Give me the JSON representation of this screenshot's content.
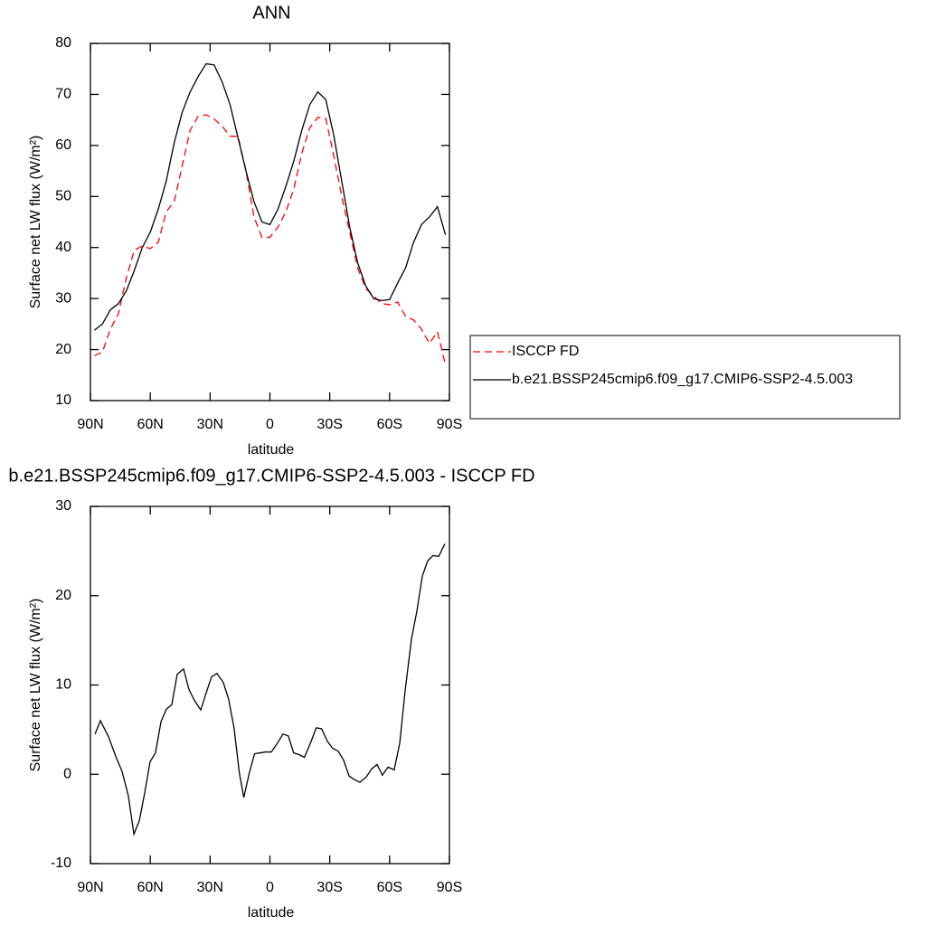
{
  "chart_data": [
    {
      "type": "line",
      "title": "ANN",
      "xlabel": "latitude",
      "ylabel": "Surface net LW flux (W/m²)",
      "x": [
        88,
        84,
        80,
        76,
        72,
        68,
        64,
        60,
        56,
        52,
        48,
        44,
        40,
        36,
        32,
        28,
        24,
        20,
        16,
        12,
        8,
        4,
        0,
        -4,
        -8,
        -12,
        -16,
        -20,
        -24,
        -28,
        -32,
        -36,
        -40,
        -44,
        -48,
        -52,
        -56,
        -60,
        -64,
        -68,
        -72,
        -76,
        -80,
        -84,
        -88
      ],
      "series": [
        {
          "name": "ISCCP FD",
          "color": "#ff0000",
          "linestyle": "dashed",
          "values": [
            18.8,
            19.5,
            24,
            27,
            34,
            39.5,
            40.3,
            39.8,
            41,
            47,
            49,
            56,
            63,
            65.7,
            66,
            65.2,
            63.8,
            61.8,
            61.8,
            55,
            46,
            42,
            42,
            44,
            47,
            51.5,
            58.5,
            63.5,
            65.5,
            65.3,
            58,
            50,
            43,
            36,
            32,
            30.5,
            29,
            28.8,
            29.3,
            26.5,
            25.8,
            24,
            21.2,
            23.5,
            17
          ]
        },
        {
          "name": "b.e21.BSSP245cmip6.f09_g17.CMIP6-SSP2-4.5.003",
          "color": "#000000",
          "linestyle": "solid",
          "values": [
            23.8,
            25,
            27.8,
            29,
            31.5,
            35.5,
            40,
            43,
            47.5,
            53,
            60.5,
            66.5,
            70.5,
            73.5,
            76,
            75.8,
            72.5,
            68,
            61.5,
            55,
            49,
            45,
            44.5,
            47.5,
            52,
            57,
            63,
            68,
            70.5,
            69,
            62,
            53,
            44,
            37,
            32.5,
            30,
            29.6,
            29.8,
            33,
            36,
            41,
            44.5,
            46,
            48,
            42.5
          ]
        }
      ],
      "xlim": [
        90,
        -90
      ],
      "xticks": [
        {
          "value": 90,
          "label": "90N"
        },
        {
          "value": 60,
          "label": "60N"
        },
        {
          "value": 30,
          "label": "30N"
        },
        0,
        {
          "value": -30,
          "label": "30S"
        },
        {
          "value": -60,
          "label": "60S"
        },
        {
          "value": -90,
          "label": "90S"
        }
      ],
      "ylim": [
        10,
        80
      ],
      "yticks": [
        10,
        20,
        30,
        40,
        50,
        60,
        70,
        80
      ],
      "legend": "outside-right"
    },
    {
      "type": "line",
      "title": "b.e21.BSSP245cmip6.f09_g17.CMIP6-SSP2-4.5.003 - ISCCP FD",
      "xlabel": "latitude",
      "ylabel": "Surface net LW flux (W/m²)",
      "x": [
        87.7,
        85.0,
        80.9,
        77.3,
        74.1,
        71.0,
        68.2,
        65.5,
        62.8,
        60.1,
        57.4,
        54.6,
        51.9,
        49.2,
        46.5,
        43.3,
        40.6,
        37.9,
        34.7,
        32.0,
        29.3,
        26.6,
        23.4,
        20.7,
        18.0,
        15.3,
        13.1,
        10.4,
        7.7,
        5.0,
        2.3,
        -0.7,
        -3.8,
        -6.5,
        -9.2,
        -11.9,
        -14.6,
        -17.3,
        -20.5,
        -23.2,
        -25.9,
        -28.8,
        -31.5,
        -34.2,
        -36.9,
        -39.7,
        -42.4,
        -45.1,
        -48.3,
        -51.0,
        -53.7,
        -56.4,
        -59.2,
        -62.3,
        -65.1,
        -67.8,
        -71.0,
        -73.7,
        -76.4,
        -79.1,
        -81.8,
        -84.6,
        -87.7
      ],
      "series": [
        {
          "color": "#000000",
          "linestyle": "solid",
          "values": [
            4.5,
            6,
            4.2,
            2,
            0.3,
            -2.4,
            -6.7,
            -5.2,
            -2.1,
            1.4,
            2.4,
            5.9,
            7.3,
            7.8,
            11.2,
            11.8,
            9.5,
            8.3,
            7.2,
            9.1,
            10.9,
            11.3,
            10.3,
            8.4,
            5.2,
            0.1,
            -2.6,
            0.1,
            2.3,
            2.4,
            2.5,
            2.5,
            3.5,
            4.5,
            4.3,
            2.4,
            2.2,
            1.9,
            3.6,
            5.2,
            5.1,
            3.7,
            2.9,
            2.6,
            1.6,
            -0.2,
            -0.6,
            -0.9,
            -0.3,
            0.6,
            1.1,
            -0.1,
            0.8,
            0.5,
            3.5,
            9.4,
            15.2,
            18.3,
            22.2,
            23.9,
            24.5,
            24.4,
            25.8
          ]
        }
      ],
      "xlim": [
        90,
        -90
      ],
      "xticks": [
        {
          "value": 90,
          "label": "90N"
        },
        {
          "value": 60,
          "label": "60N"
        },
        {
          "value": 30,
          "label": "30N"
        },
        0,
        {
          "value": -30,
          "label": "30S"
        },
        {
          "value": -60,
          "label": "60S"
        },
        {
          "value": -90,
          "label": "90S"
        }
      ],
      "ylim": [
        -10,
        30
      ],
      "yticks": [
        -10,
        0,
        10,
        20,
        30
      ]
    }
  ]
}
